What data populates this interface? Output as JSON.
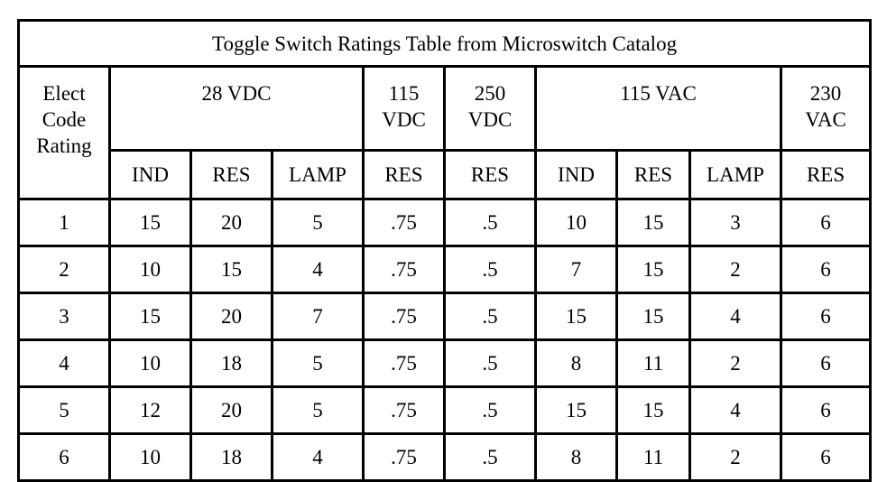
{
  "table": {
    "title": "Toggle Switch Ratings Table from Microswitch Catalog",
    "code_header": [
      "Elect",
      "Code",
      "Rating"
    ],
    "groups": [
      {
        "lines": [
          "28 VDC"
        ],
        "span": 3
      },
      {
        "lines": [
          "115",
          "VDC"
        ],
        "span": 1
      },
      {
        "lines": [
          "250",
          "VDC"
        ],
        "span": 1
      },
      {
        "lines": [
          "115 VAC"
        ],
        "span": 3
      },
      {
        "lines": [
          "230",
          "VAC"
        ],
        "span": 1
      }
    ],
    "subheaders": [
      "IND",
      "RES",
      "LAMP",
      "RES",
      "RES",
      "IND",
      "RES",
      "LAMP",
      "RES"
    ],
    "rows": [
      [
        "1",
        "15",
        "20",
        "5",
        ".75",
        ".5",
        "10",
        "15",
        "3",
        "6"
      ],
      [
        "2",
        "10",
        "15",
        "4",
        ".75",
        ".5",
        "7",
        "15",
        "2",
        "6"
      ],
      [
        "3",
        "15",
        "20",
        "7",
        ".75",
        ".5",
        "15",
        "15",
        "4",
        "6"
      ],
      [
        "4",
        "10",
        "18",
        "5",
        ".75",
        ".5",
        "8",
        "11",
        "2",
        "6"
      ],
      [
        "5",
        "12",
        "20",
        "5",
        ".75",
        ".5",
        "15",
        "15",
        "4",
        "6"
      ],
      [
        "6",
        "10",
        "18",
        "4",
        ".75",
        ".5",
        "8",
        "11",
        "2",
        "6"
      ]
    ]
  }
}
